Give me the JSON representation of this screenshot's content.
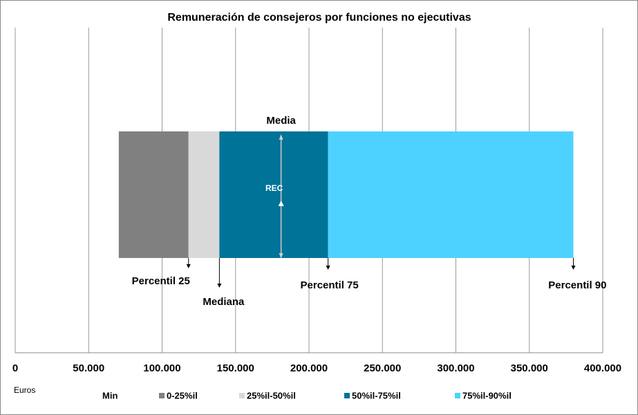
{
  "chart_data": {
    "type": "stacked-hbar",
    "title": "Remuneración de consejeros por funciones no ejecutivas",
    "x_label": "Euros",
    "categories": [
      null
    ],
    "series": [
      {
        "name": "Min",
        "values": [
          70500
        ]
      },
      {
        "name": "0-25%il",
        "color": "#808080",
        "values": [
          47500
        ]
      },
      {
        "name": "25%il-50%il",
        "color": "#d9d9d9",
        "values": [
          21000
        ]
      },
      {
        "name": "50%il-75%il",
        "color": "#007398",
        "values": [
          74000
        ]
      },
      {
        "name": "75%il-90%il",
        "color": "#4dd2ff",
        "values": [
          167000
        ]
      }
    ],
    "annotations": [
      {
        "text": "Percentil 25"
      },
      {
        "text": "Mediana"
      },
      {
        "text": "Percentil 75"
      },
      {
        "text": "Percentil 90"
      }
    ],
    "mean": {
      "label": "Media",
      "value": 181000,
      "inner_label": "REC"
    },
    "xlim": [
      0,
      400000
    ],
    "xticks": [
      0,
      {
        "value": 50000,
        "label": "50.000"
      },
      {
        "value": 100000,
        "label": "100.000"
      },
      {
        "value": 150000,
        "label": "150.000"
      },
      {
        "value": 200000,
        "label": "200.000"
      },
      {
        "value": 250000,
        "label": "250.000"
      },
      {
        "value": 300000,
        "label": "300.000"
      },
      {
        "value": 350000,
        "label": "350.000"
      },
      {
        "value": 400000,
        "label": "400.000"
      }
    ],
    "grid": true
  }
}
